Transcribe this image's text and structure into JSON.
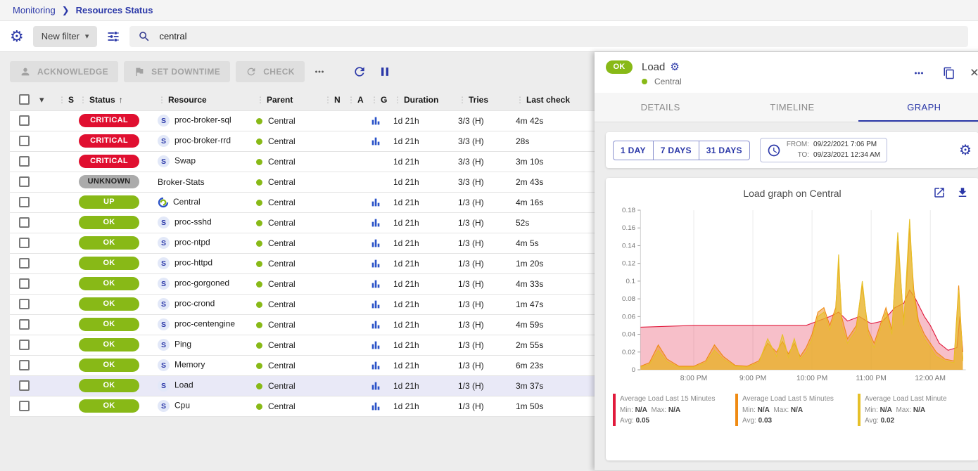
{
  "colors": {
    "primary": "#2b38a8",
    "ok_green": "#88b917",
    "critical_red": "#e00f30",
    "unknown_gray": "#ababab",
    "selected_row_bg": "#e9e9f7",
    "graph_icon_blue": "#2a52c8"
  },
  "breadcrumb": {
    "monitoring": "Monitoring",
    "current": "Resources Status"
  },
  "filter_bar": {
    "new_filter_label": "New filter",
    "search_value": "central"
  },
  "toolbar": {
    "acknowledge_label": "ACKNOWLEDGE",
    "set_downtime_label": "SET DOWNTIME",
    "check_label": "CHECK"
  },
  "table": {
    "columns": [
      "S",
      "Status",
      "Resource",
      "Parent",
      "N",
      "A",
      "G",
      "Duration",
      "Tries",
      "Last check"
    ],
    "rows": [
      {
        "status": "CRITICAL",
        "severity": "critical",
        "type": "service",
        "resource": "proc-broker-sql",
        "parent": "Central",
        "graph": true,
        "duration": "1d 21h",
        "tries": "3/3 (H)",
        "last_check": "4m 42s",
        "selected": false
      },
      {
        "status": "CRITICAL",
        "severity": "critical",
        "type": "service",
        "resource": "proc-broker-rrd",
        "parent": "Central",
        "graph": true,
        "duration": "1d 21h",
        "tries": "3/3 (H)",
        "last_check": "28s",
        "selected": false
      },
      {
        "status": "CRITICAL",
        "severity": "critical",
        "type": "service",
        "resource": "Swap",
        "parent": "Central",
        "graph": false,
        "duration": "1d 21h",
        "tries": "3/3 (H)",
        "last_check": "3m 10s",
        "selected": false
      },
      {
        "status": "UNKNOWN",
        "severity": "unknown",
        "type": "none",
        "resource": "Broker-Stats",
        "parent": "Central",
        "graph": false,
        "duration": "1d 21h",
        "tries": "3/3 (H)",
        "last_check": "2m 43s",
        "selected": false
      },
      {
        "status": "UP",
        "severity": "up",
        "type": "host",
        "resource": "Central",
        "parent": "Central",
        "graph": true,
        "duration": "1d 21h",
        "tries": "1/3 (H)",
        "last_check": "4m 16s",
        "selected": false
      },
      {
        "status": "OK",
        "severity": "ok",
        "type": "service",
        "resource": "proc-sshd",
        "parent": "Central",
        "graph": true,
        "duration": "1d 21h",
        "tries": "1/3 (H)",
        "last_check": "52s",
        "selected": false
      },
      {
        "status": "OK",
        "severity": "ok",
        "type": "service",
        "resource": "proc-ntpd",
        "parent": "Central",
        "graph": true,
        "duration": "1d 21h",
        "tries": "1/3 (H)",
        "last_check": "4m 5s",
        "selected": false
      },
      {
        "status": "OK",
        "severity": "ok",
        "type": "service",
        "resource": "proc-httpd",
        "parent": "Central",
        "graph": true,
        "duration": "1d 21h",
        "tries": "1/3 (H)",
        "last_check": "1m 20s",
        "selected": false
      },
      {
        "status": "OK",
        "severity": "ok",
        "type": "service",
        "resource": "proc-gorgoned",
        "parent": "Central",
        "graph": true,
        "duration": "1d 21h",
        "tries": "1/3 (H)",
        "last_check": "4m 33s",
        "selected": false
      },
      {
        "status": "OK",
        "severity": "ok",
        "type": "service",
        "resource": "proc-crond",
        "parent": "Central",
        "graph": true,
        "duration": "1d 21h",
        "tries": "1/3 (H)",
        "last_check": "1m 47s",
        "selected": false
      },
      {
        "status": "OK",
        "severity": "ok",
        "type": "service",
        "resource": "proc-centengine",
        "parent": "Central",
        "graph": true,
        "duration": "1d 21h",
        "tries": "1/3 (H)",
        "last_check": "4m 59s",
        "selected": false
      },
      {
        "status": "OK",
        "severity": "ok",
        "type": "service",
        "resource": "Ping",
        "parent": "Central",
        "graph": true,
        "duration": "1d 21h",
        "tries": "1/3 (H)",
        "last_check": "2m 55s",
        "selected": false
      },
      {
        "status": "OK",
        "severity": "ok",
        "type": "service",
        "resource": "Memory",
        "parent": "Central",
        "graph": true,
        "duration": "1d 21h",
        "tries": "1/3 (H)",
        "last_check": "6m 23s",
        "selected": false
      },
      {
        "status": "OK",
        "severity": "ok",
        "type": "service",
        "resource": "Load",
        "parent": "Central",
        "graph": true,
        "duration": "1d 21h",
        "tries": "1/3 (H)",
        "last_check": "3m 37s",
        "selected": true
      },
      {
        "status": "OK",
        "severity": "ok",
        "type": "service",
        "resource": "Cpu",
        "parent": "Central",
        "graph": true,
        "duration": "1d 21h",
        "tries": "1/3 (H)",
        "last_check": "1m 50s",
        "selected": false
      }
    ]
  },
  "panel": {
    "status": "OK",
    "title": "Load",
    "parent_name": "Central",
    "tabs": [
      "DETAILS",
      "TIMELINE",
      "GRAPH"
    ],
    "active_tab": "GRAPH",
    "ranges": [
      "1 DAY",
      "7 DAYS",
      "31 DAYS"
    ],
    "from_label": "FROM:",
    "from_value": "09/22/2021 7:06 PM",
    "to_label": "TO:",
    "to_value": "09/23/2021 12:34 AM",
    "graph_title": "Load graph on Central"
  },
  "chart_data": {
    "type": "area",
    "title": "Load graph on Central",
    "xlabel": "",
    "ylabel": "",
    "xlim": [
      19.1,
      24.6
    ],
    "ylim": [
      0,
      0.18
    ],
    "y_ticks": [
      0,
      0.02,
      0.04,
      0.06,
      0.08,
      0.1,
      0.12,
      0.14,
      0.16,
      0.18
    ],
    "x_ticks": [
      {
        "v": 20,
        "label": "8:00 PM"
      },
      {
        "v": 21,
        "label": "9:00 PM"
      },
      {
        "v": 22,
        "label": "10:00 PM"
      },
      {
        "v": 23,
        "label": "11:00 PM"
      },
      {
        "v": 24,
        "label": "12:00 AM"
      }
    ],
    "legend_labels": {
      "min": "Min:",
      "max": "Max:",
      "avg": "Avg:"
    },
    "series": [
      {
        "name": "Average Load Last 15 Minutes",
        "color": "#e11a3c",
        "fill_opacity": 0.28,
        "min": "N/A",
        "max": "N/A",
        "avg": "0.05",
        "points": [
          [
            19.1,
            0.048
          ],
          [
            20,
            0.05
          ],
          [
            21,
            0.05
          ],
          [
            21.9,
            0.05
          ],
          [
            22.1,
            0.055
          ],
          [
            22.3,
            0.06
          ],
          [
            22.45,
            0.065
          ],
          [
            22.6,
            0.055
          ],
          [
            22.8,
            0.06
          ],
          [
            23,
            0.052
          ],
          [
            23.2,
            0.055
          ],
          [
            23.4,
            0.07
          ],
          [
            23.55,
            0.075
          ],
          [
            23.65,
            0.09
          ],
          [
            23.75,
            0.08
          ],
          [
            23.9,
            0.06
          ],
          [
            24.0,
            0.05
          ],
          [
            24.15,
            0.03
          ],
          [
            24.3,
            0.022
          ],
          [
            24.45,
            0.025
          ],
          [
            24.5,
            0.06
          ],
          [
            24.55,
            0.02
          ]
        ]
      },
      {
        "name": "Average Load Last 5 Minutes",
        "color": "#ef8b13",
        "fill_opacity": 0.5,
        "min": "N/A",
        "max": "N/A",
        "avg": "0.03",
        "points": [
          [
            19.1,
            0.004
          ],
          [
            19.25,
            0.008
          ],
          [
            19.4,
            0.028
          ],
          [
            19.55,
            0.012
          ],
          [
            19.75,
            0.004
          ],
          [
            20.0,
            0.004
          ],
          [
            20.2,
            0.01
          ],
          [
            20.35,
            0.028
          ],
          [
            20.5,
            0.015
          ],
          [
            20.7,
            0.005
          ],
          [
            20.9,
            0.004
          ],
          [
            21.1,
            0.01
          ],
          [
            21.25,
            0.03
          ],
          [
            21.4,
            0.02
          ],
          [
            21.5,
            0.032
          ],
          [
            21.6,
            0.018
          ],
          [
            21.7,
            0.03
          ],
          [
            21.8,
            0.015
          ],
          [
            21.9,
            0.025
          ],
          [
            22.0,
            0.04
          ],
          [
            22.1,
            0.065
          ],
          [
            22.2,
            0.07
          ],
          [
            22.3,
            0.05
          ],
          [
            22.4,
            0.07
          ],
          [
            22.45,
            0.12
          ],
          [
            22.5,
            0.06
          ],
          [
            22.6,
            0.035
          ],
          [
            22.75,
            0.05
          ],
          [
            22.85,
            0.095
          ],
          [
            22.95,
            0.045
          ],
          [
            23.05,
            0.03
          ],
          [
            23.15,
            0.05
          ],
          [
            23.25,
            0.07
          ],
          [
            23.35,
            0.045
          ],
          [
            23.45,
            0.145
          ],
          [
            23.55,
            0.055
          ],
          [
            23.6,
            0.1
          ],
          [
            23.65,
            0.16
          ],
          [
            23.72,
            0.09
          ],
          [
            23.8,
            0.055
          ],
          [
            23.9,
            0.04
          ],
          [
            24.0,
            0.03
          ],
          [
            24.1,
            0.02
          ],
          [
            24.25,
            0.012
          ],
          [
            24.4,
            0.01
          ],
          [
            24.48,
            0.095
          ],
          [
            24.55,
            0.012
          ]
        ]
      },
      {
        "name": "Average Load Last Minute",
        "color": "#e6c029",
        "fill_opacity": 0.55,
        "min": "N/A",
        "max": "N/A",
        "avg": "0.02",
        "points": [
          [
            19.1,
            0.003
          ],
          [
            19.25,
            0.006
          ],
          [
            19.4,
            0.022
          ],
          [
            19.55,
            0.009
          ],
          [
            19.75,
            0.003
          ],
          [
            20.0,
            0.003
          ],
          [
            20.2,
            0.008
          ],
          [
            20.35,
            0.022
          ],
          [
            20.5,
            0.012
          ],
          [
            20.7,
            0.004
          ],
          [
            20.9,
            0.003
          ],
          [
            21.1,
            0.008
          ],
          [
            21.25,
            0.035
          ],
          [
            21.4,
            0.015
          ],
          [
            21.5,
            0.04
          ],
          [
            21.6,
            0.014
          ],
          [
            21.7,
            0.035
          ],
          [
            21.8,
            0.012
          ],
          [
            21.9,
            0.02
          ],
          [
            22.0,
            0.035
          ],
          [
            22.1,
            0.06
          ],
          [
            22.2,
            0.065
          ],
          [
            22.3,
            0.045
          ],
          [
            22.4,
            0.065
          ],
          [
            22.45,
            0.13
          ],
          [
            22.5,
            0.05
          ],
          [
            22.6,
            0.03
          ],
          [
            22.75,
            0.045
          ],
          [
            22.85,
            0.1
          ],
          [
            22.95,
            0.04
          ],
          [
            23.05,
            0.025
          ],
          [
            23.15,
            0.045
          ],
          [
            23.25,
            0.065
          ],
          [
            23.35,
            0.04
          ],
          [
            23.45,
            0.155
          ],
          [
            23.55,
            0.05
          ],
          [
            23.6,
            0.11
          ],
          [
            23.65,
            0.17
          ],
          [
            23.72,
            0.08
          ],
          [
            23.8,
            0.05
          ],
          [
            23.9,
            0.035
          ],
          [
            24.0,
            0.025
          ],
          [
            24.1,
            0.015
          ],
          [
            24.25,
            0.01
          ],
          [
            24.4,
            0.008
          ],
          [
            24.48,
            0.09
          ],
          [
            24.55,
            0.01
          ]
        ]
      }
    ]
  }
}
